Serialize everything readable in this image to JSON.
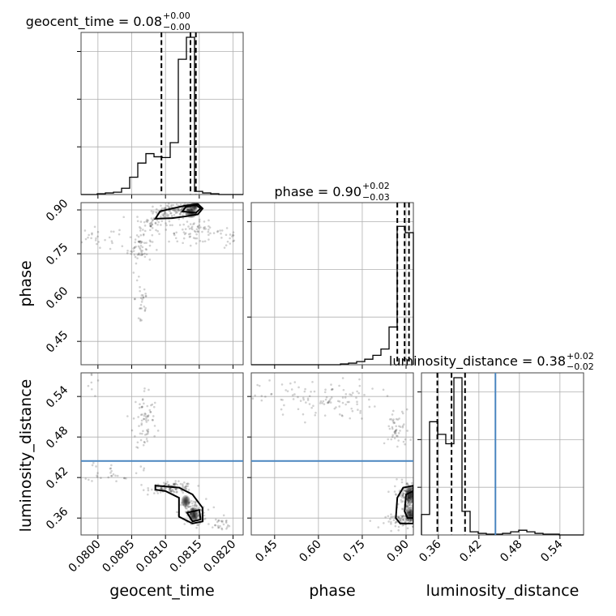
{
  "chart_data": {
    "type": "corner",
    "parameters": [
      {
        "name": "geocent_time",
        "axis_label": "geocent_time",
        "title": "geocent_time = 0.08",
        "title_sup": "+0.00",
        "title_sub": "−0.00",
        "range": [
          0.07975,
          0.08215
        ],
        "ticks": [
          0.08,
          0.0805,
          0.081,
          0.0815,
          0.082
        ],
        "tick_labels": [
          "0.0800",
          "0.0805",
          "0.0810",
          "0.0815",
          "0.0820"
        ],
        "quantiles": [
          0.08094,
          0.08137,
          0.08145
        ],
        "truth": null,
        "hist_edges": [
          0.07975,
          0.07987,
          0.07999,
          0.08011,
          0.08023,
          0.08035,
          0.08047,
          0.08059,
          0.08071,
          0.08083,
          0.08095,
          0.08107,
          0.08119,
          0.08131,
          0.08143,
          0.08155,
          0.08167,
          0.08179,
          0.08191,
          0.08203,
          0.08215
        ],
        "hist_counts": [
          0,
          0,
          0.005,
          0.01,
          0.015,
          0.04,
          0.11,
          0.2,
          0.26,
          0.24,
          0.235,
          0.33,
          0.86,
          1.0,
          0.02,
          0.01,
          0.005,
          0,
          0,
          0
        ]
      },
      {
        "name": "phase",
        "axis_label": "phase",
        "title": "phase = 0.90",
        "title_sup": "+0.02",
        "title_sub": "−0.03",
        "range": [
          0.37,
          0.925
        ],
        "ticks": [
          0.45,
          0.6,
          0.75,
          0.9
        ],
        "tick_labels": [
          "0.45",
          "0.60",
          "0.75",
          "0.90"
        ],
        "quantiles": [
          0.87,
          0.895,
          0.91
        ],
        "truth": null,
        "hist_edges": [
          0.37,
          0.3978,
          0.4255,
          0.4533,
          0.481,
          0.5088,
          0.5365,
          0.5643,
          0.592,
          0.6198,
          0.6475,
          0.6753,
          0.703,
          0.7308,
          0.7585,
          0.7863,
          0.814,
          0.8418,
          0.8695,
          0.8973,
          0.925
        ],
        "hist_counts": [
          0,
          0,
          0,
          0,
          0,
          0,
          0,
          0,
          0,
          0,
          0,
          0.005,
          0.01,
          0.02,
          0.035,
          0.06,
          0.1,
          0.24,
          0.88,
          0.84
        ]
      },
      {
        "name": "luminosity_distance",
        "axis_label": "luminosity_distance",
        "title": "luminosity_distance = 0.38",
        "title_sup": "+0.02",
        "title_sub": "−0.02",
        "range": [
          0.335,
          0.575
        ],
        "ticks": [
          0.36,
          0.42,
          0.48,
          0.54
        ],
        "tick_labels": [
          "0.36",
          "0.42",
          "0.48",
          "0.54"
        ],
        "quantiles": [
          0.3585,
          0.3795,
          0.3995
        ],
        "truth": 0.4445,
        "hist_edges": [
          0.335,
          0.347,
          0.359,
          0.371,
          0.383,
          0.395,
          0.407,
          0.419,
          0.431,
          0.443,
          0.455,
          0.467,
          0.479,
          0.491,
          0.503,
          0.515,
          0.527,
          0.539,
          0.551,
          0.563,
          0.575
        ],
        "hist_counts": [
          0.13,
          0.72,
          0.64,
          0.58,
          1.0,
          0.15,
          0.02,
          0.01,
          0.005,
          0.005,
          0.01,
          0.02,
          0.03,
          0.02,
          0.01,
          0.005,
          0.005,
          0,
          0,
          0
        ]
      }
    ],
    "samples_2d": {
      "phase_vs_geocent_time": {
        "clusters": [
          {
            "x": 0.0811,
            "y": 0.895,
            "sx": 0.00014,
            "sy": 0.013,
            "n": 90
          },
          {
            "x": 0.08135,
            "y": 0.91,
            "sx": 8e-05,
            "sy": 0.008,
            "n": 70
          },
          {
            "x": 0.0808,
            "y": 0.855,
            "sx": 0.00012,
            "sy": 0.018,
            "n": 50
          },
          {
            "x": 0.08062,
            "y": 0.77,
            "sx": 9e-05,
            "sy": 0.025,
            "n": 60
          },
          {
            "x": 0.08145,
            "y": 0.825,
            "sx": 0.0002,
            "sy": 0.018,
            "n": 70
          },
          {
            "x": 0.08065,
            "y": 0.6,
            "sx": 5e-05,
            "sy": 0.07,
            "n": 30
          },
          {
            "x": 0.08,
            "y": 0.8,
            "sx": 0.0002,
            "sy": 0.02,
            "n": 25
          },
          {
            "x": 0.08195,
            "y": 0.8,
            "sx": 8e-05,
            "sy": 0.02,
            "n": 15
          }
        ],
        "density_peaks": [
          {
            "x": 0.08143,
            "y": 0.915,
            "sx": 3e-05,
            "sy": 0.006
          },
          {
            "x": 0.08138,
            "y": 0.89,
            "sx": 4e-05,
            "sy": 0.008
          }
        ],
        "contours": [
          [
            [
              0.08085,
              0.87
            ],
            [
              0.08092,
              0.895
            ],
            [
              0.0811,
              0.905
            ],
            [
              0.0813,
              0.915
            ],
            [
              0.08148,
              0.92
            ],
            [
              0.08155,
              0.905
            ],
            [
              0.08148,
              0.885
            ],
            [
              0.0813,
              0.878
            ],
            [
              0.0811,
              0.872
            ],
            [
              0.08085,
              0.87
            ]
          ],
          [
            [
              0.08125,
              0.895
            ],
            [
              0.0813,
              0.91
            ],
            [
              0.08145,
              0.918
            ],
            [
              0.08152,
              0.905
            ],
            [
              0.08145,
              0.89
            ],
            [
              0.08125,
              0.895
            ]
          ]
        ]
      },
      "luminosity_distance_vs_geocent_time": {
        "clusters": [
          {
            "x": 0.0811,
            "y": 0.405,
            "sx": 0.00016,
            "sy": 0.004,
            "n": 110
          },
          {
            "x": 0.0814,
            "y": 0.368,
            "sx": 0.0001,
            "sy": 0.01,
            "n": 110
          },
          {
            "x": 0.0807,
            "y": 0.505,
            "sx": 9e-05,
            "sy": 0.025,
            "n": 70
          },
          {
            "x": 0.0802,
            "y": 0.43,
            "sx": 0.0002,
            "sy": 0.008,
            "n": 30
          },
          {
            "x": 0.0818,
            "y": 0.35,
            "sx": 0.0001,
            "sy": 0.006,
            "n": 25
          },
          {
            "x": 0.0799,
            "y": 0.56,
            "sx": 5e-05,
            "sy": 0.01,
            "n": 8
          }
        ],
        "density_peaks": [
          {
            "x": 0.08142,
            "y": 0.365,
            "sx": 3e-05,
            "sy": 0.005
          },
          {
            "x": 0.0813,
            "y": 0.385,
            "sx": 3e-05,
            "sy": 0.004
          }
        ],
        "contours": [
          [
            [
              0.08085,
              0.408
            ],
            [
              0.0812,
              0.405
            ],
            [
              0.0814,
              0.395
            ],
            [
              0.08155,
              0.375
            ],
            [
              0.08155,
              0.355
            ],
            [
              0.0814,
              0.352
            ],
            [
              0.0812,
              0.362
            ],
            [
              0.0812,
              0.39
            ],
            [
              0.081,
              0.4
            ],
            [
              0.08085,
              0.402
            ],
            [
              0.08085,
              0.408
            ]
          ],
          [
            [
              0.08132,
              0.368
            ],
            [
              0.0815,
              0.372
            ],
            [
              0.08152,
              0.358
            ],
            [
              0.0814,
              0.355
            ],
            [
              0.08132,
              0.368
            ]
          ]
        ]
      },
      "luminosity_distance_vs_phase": {
        "clusters": [
          {
            "x": 0.6,
            "y": 0.535,
            "sx": 0.1,
            "sy": 0.015,
            "n": 110
          },
          {
            "x": 0.87,
            "y": 0.49,
            "sx": 0.02,
            "sy": 0.015,
            "n": 50
          },
          {
            "x": 0.9,
            "y": 0.395,
            "sx": 0.02,
            "sy": 0.01,
            "n": 90
          },
          {
            "x": 0.89,
            "y": 0.355,
            "sx": 0.03,
            "sy": 0.005,
            "n": 70
          },
          {
            "x": 0.91,
            "y": 0.38,
            "sx": 0.01,
            "sy": 0.01,
            "n": 60
          }
        ],
        "density_peaks": [
          {
            "x": 0.915,
            "y": 0.365,
            "sx": 0.008,
            "sy": 0.005
          },
          {
            "x": 0.915,
            "y": 0.395,
            "sx": 0.008,
            "sy": 0.006
          }
        ],
        "contours": [
          [
            [
              0.865,
              0.36
            ],
            [
              0.87,
              0.39
            ],
            [
              0.89,
              0.405
            ],
            [
              0.925,
              0.408
            ],
            [
              0.925,
              0.352
            ],
            [
              0.88,
              0.352
            ],
            [
              0.865,
              0.36
            ]
          ],
          [
            [
              0.895,
              0.37
            ],
            [
              0.9,
              0.395
            ],
            [
              0.925,
              0.4
            ],
            [
              0.925,
              0.36
            ],
            [
              0.905,
              0.36
            ],
            [
              0.895,
              0.37
            ]
          ]
        ]
      }
    },
    "colors": {
      "truth": "#4a86c0",
      "marks": "#000000",
      "grid": "#b0b0b0"
    }
  }
}
